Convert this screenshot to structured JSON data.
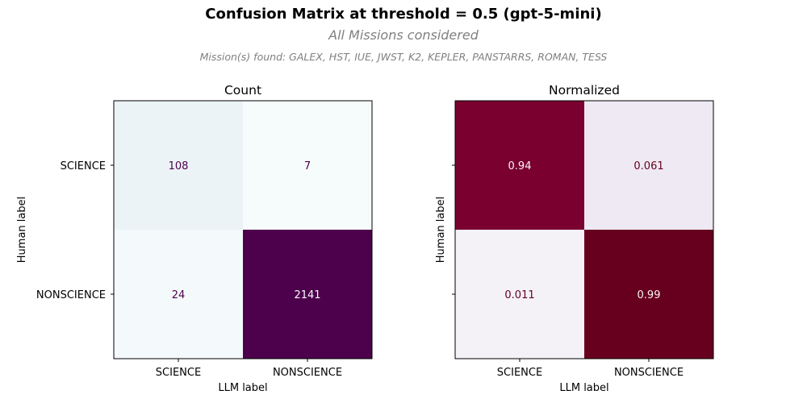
{
  "figure": {
    "title": "Confusion Matrix at threshold = 0.5 (gpt-5-mini)",
    "subtitle": "All Missions considered",
    "missions_note": "Mission(s) found: GALEX, HST, IUE, JWST, K2, KEPLER, PANSTARRS, ROMAN, TESS"
  },
  "chart_data": [
    {
      "type": "heatmap",
      "title": "Count",
      "xlabel": "LLM label",
      "ylabel": "Human label",
      "x_categories": [
        "SCIENCE",
        "NONSCIENCE"
      ],
      "y_categories": [
        "SCIENCE",
        "NONSCIENCE"
      ],
      "show_y_tick_labels": true,
      "colormap": "BuPu",
      "vmin": 7,
      "vmax": 2141,
      "values": [
        [
          108,
          7
        ],
        [
          24,
          2141
        ]
      ],
      "labels": [
        [
          "108",
          "7"
        ],
        [
          "24",
          "2141"
        ]
      ]
    },
    {
      "type": "heatmap",
      "title": "Normalized",
      "xlabel": "LLM label",
      "ylabel": "Human label",
      "x_categories": [
        "SCIENCE",
        "NONSCIENCE"
      ],
      "y_categories": [
        "SCIENCE",
        "NONSCIENCE"
      ],
      "show_y_tick_labels": false,
      "colormap": "PuRd",
      "vmin": 0.011,
      "vmax": 0.99,
      "values": [
        [
          0.94,
          0.061
        ],
        [
          0.011,
          0.99
        ]
      ],
      "labels": [
        [
          "0.94",
          "0.061"
        ],
        [
          "0.011",
          "0.99"
        ]
      ]
    }
  ],
  "colors": {
    "count_cells": [
      [
        "#ecf3f7",
        "#f6fbfb"
      ],
      [
        "#f4f9fb",
        "#4d004b"
      ]
    ],
    "count_text": [
      [
        "#4d004b",
        "#4d004b"
      ],
      [
        "#4d004b",
        "#f7fcfd"
      ]
    ],
    "normalized_cells": [
      [
        "#7a0030",
        "#eee9f3"
      ],
      [
        "#f4f1f7",
        "#67001f"
      ]
    ],
    "normalized_text": [
      [
        "#f7f4f9",
        "#67001f"
      ],
      [
        "#67001f",
        "#f7f4f9"
      ]
    ]
  }
}
